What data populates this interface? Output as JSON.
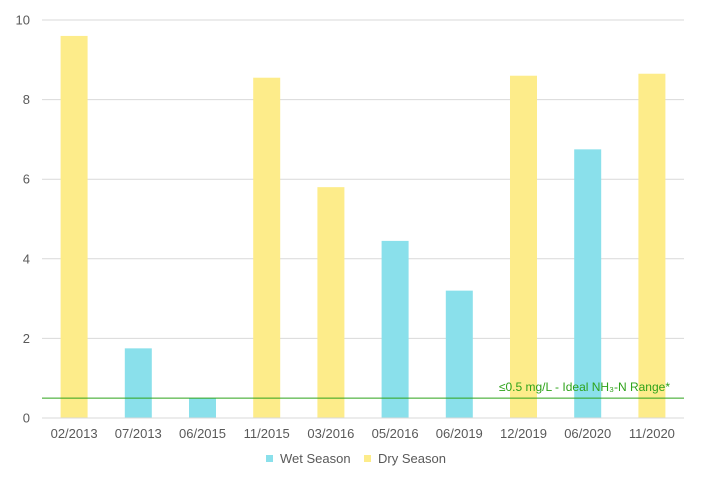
{
  "chart_data": {
    "type": "bar",
    "categories": [
      "02/2013",
      "07/2013",
      "06/2015",
      "11/2015",
      "03/2016",
      "05/2016",
      "06/2019",
      "12/2019",
      "06/2020",
      "11/2020"
    ],
    "values": [
      9.6,
      1.75,
      0.5,
      8.55,
      5.8,
      4.45,
      3.2,
      8.6,
      6.75,
      8.65
    ],
    "season": [
      "Dry Season",
      "Wet Season",
      "Wet Season",
      "Dry Season",
      "Dry Season",
      "Wet Season",
      "Wet Season",
      "Dry Season",
      "Wet Season",
      "Dry Season"
    ],
    "series": [
      {
        "name": "Wet Season",
        "color": "#8ae0eb"
      },
      {
        "name": "Dry Season",
        "color": "#fdec8a"
      }
    ],
    "ylim": [
      0,
      10
    ],
    "yticks": [
      0,
      2,
      4,
      6,
      8,
      10
    ],
    "grid": true,
    "legend": "bottom",
    "reference_line": {
      "value": 0.5,
      "label": "≤0.5 mg/L - Ideal NH₃-N Range*",
      "color": "#2ea31a"
    }
  }
}
